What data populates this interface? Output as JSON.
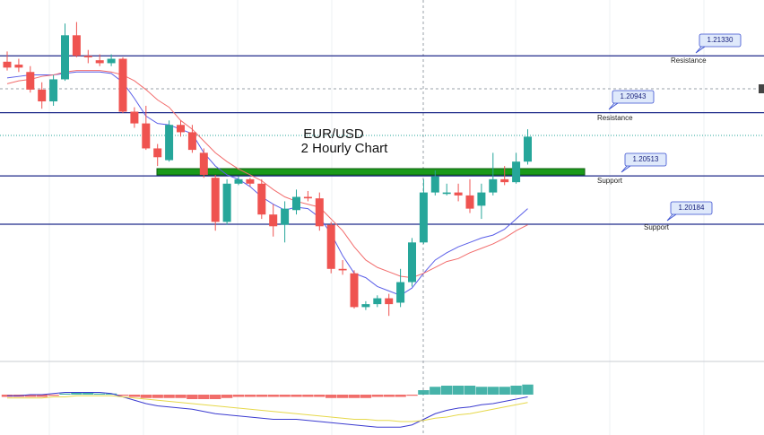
{
  "chart_data": {
    "type": "candlestick",
    "title": "EUR/USD",
    "subtitle": "2 Hourly Chart",
    "ylim": [
      1.1925,
      1.2171
    ],
    "open": [
      1.2129,
      1.2127,
      1.2122,
      1.211,
      1.2102,
      1.2117,
      1.2147,
      1.2133,
      1.213,
      1.2128,
      1.2131,
      1.2095,
      1.2087,
      1.207,
      1.2062,
      1.2086,
      1.2081,
      1.2067,
      1.205,
      1.202,
      1.2046,
      1.2049,
      1.2046,
      1.2025,
      1.2018,
      1.2028,
      1.2037,
      1.2036,
      1.2018,
      1.1988,
      1.1985,
      1.1962,
      1.1964,
      1.1968,
      1.1965,
      1.1979,
      1.2006,
      1.204,
      1.2039,
      1.204,
      1.2038,
      1.2031,
      1.204,
      1.2049,
      1.2047,
      1.2061
    ],
    "high": [
      1.2136,
      1.2131,
      1.2126,
      1.2115,
      1.212,
      1.2155,
      1.2156,
      1.2137,
      1.2134,
      1.2134,
      1.2132,
      1.2098,
      1.2099,
      1.2073,
      1.2089,
      1.2089,
      1.2086,
      1.207,
      1.2052,
      1.2049,
      1.2051,
      1.205,
      1.2049,
      1.2032,
      1.2034,
      1.2042,
      1.2041,
      1.204,
      1.202,
      1.1994,
      1.1987,
      1.1966,
      1.197,
      1.1971,
      1.1988,
      1.2009,
      1.2049,
      1.2055,
      1.2046,
      1.2046,
      1.2049,
      1.2046,
      1.2067,
      1.2058,
      1.2067,
      1.2083
    ],
    "low": [
      1.2123,
      1.2122,
      1.2108,
      1.2097,
      1.2099,
      1.2116,
      1.2132,
      1.2128,
      1.2126,
      1.2126,
      1.2094,
      1.2084,
      1.2069,
      1.2058,
      1.2061,
      1.2078,
      1.2067,
      1.205,
      1.2014,
      1.2018,
      1.2045,
      1.2044,
      1.2022,
      1.201,
      1.2006,
      1.2025,
      1.2034,
      1.2014,
      1.1985,
      1.1984,
      1.1961,
      1.196,
      1.1962,
      1.1956,
      1.1962,
      1.1976,
      1.2005,
      1.2038,
      1.2038,
      1.2034,
      1.2026,
      1.2022,
      1.2038,
      1.2045,
      1.2046,
      1.2059
    ],
    "close": [
      1.2125,
      1.2125,
      1.211,
      1.2102,
      1.2117,
      1.2147,
      1.2133,
      1.2132,
      1.2128,
      1.2131,
      1.2095,
      1.2087,
      1.207,
      1.2064,
      1.2086,
      1.2081,
      1.2069,
      1.2052,
      1.202,
      1.2046,
      1.2049,
      1.2046,
      1.2025,
      1.2017,
      1.2029,
      1.2037,
      1.2036,
      1.2017,
      1.1988,
      1.1987,
      1.1962,
      1.1964,
      1.1968,
      1.1964,
      1.1979,
      1.2006,
      1.204,
      1.2051,
      1.204,
      1.2038,
      1.2029,
      1.204,
      1.2049,
      1.2047,
      1.2061,
      1.2078
    ],
    "up_color": "#26a69a",
    "down_color": "#ef5350",
    "overlays": [
      {
        "color": "#5a5ee8",
        "values": [
          1.2118,
          1.2119,
          1.212,
          1.212,
          1.212,
          1.2121,
          1.2122,
          1.2122,
          1.2122,
          1.2121,
          1.2115,
          1.2104,
          1.2092,
          1.2087,
          1.2086,
          1.2083,
          1.208,
          1.2067,
          1.2058,
          1.2052,
          1.2049,
          1.2044,
          1.2037,
          1.2032,
          1.2028,
          1.203,
          1.2029,
          1.2023,
          1.2012,
          1.1997,
          1.1985,
          1.1982,
          1.1976,
          1.1973,
          1.197,
          1.1975,
          1.1985,
          1.1994,
          1.1999,
          1.2003,
          1.2006,
          1.2009,
          1.2011,
          1.2015,
          1.2022,
          1.2029
        ]
      },
      {
        "color": "#f26c6c",
        "values": [
          1.2114,
          1.2116,
          1.2117,
          1.2119,
          1.212,
          1.2122,
          1.2123,
          1.2123,
          1.2123,
          1.2122,
          1.212,
          1.2116,
          1.211,
          1.2103,
          1.2098,
          1.2089,
          1.2083,
          1.2075,
          1.2067,
          1.2061,
          1.2056,
          1.2052,
          1.2048,
          1.2042,
          1.2037,
          1.2034,
          1.2032,
          1.203,
          1.2022,
          1.2014,
          1.2003,
          1.1994,
          1.1989,
          1.1986,
          1.1983,
          1.1982,
          1.1985,
          1.1989,
          1.1993,
          1.1995,
          1.1999,
          1.2002,
          1.2005,
          1.2009,
          1.2014,
          1.2018
        ]
      }
    ],
    "levels": [
      {
        "value": 1.2133,
        "label": "1.21330",
        "note": "Resistance"
      },
      {
        "value": 1.20943,
        "label": "1.20943",
        "note": "Resistance"
      },
      {
        "value": 1.20513,
        "label": "1.20513",
        "note": "Support"
      },
      {
        "value": 1.20184,
        "label": "1.20184",
        "note": "Support"
      }
    ],
    "level_color": "#1f2a8a",
    "indicator": {
      "ylim": [
        -32,
        12
      ],
      "up_color": "#26a69a",
      "down_color": "#ef5350",
      "histogram": [
        -2,
        -2,
        -2,
        -2,
        -1,
        1,
        2,
        2,
        1,
        1,
        -1,
        -2,
        -3,
        -3,
        -3,
        -3,
        -4,
        -4,
        -4,
        -3,
        -2,
        -2,
        -2,
        -2,
        -2,
        -2,
        -2,
        -2,
        -3,
        -3,
        -3,
        -3,
        -2,
        -2,
        -2,
        -1,
        4,
        7,
        8,
        8,
        8,
        7,
        7,
        7,
        8,
        9
      ],
      "lines": [
        {
          "color": "#3b3bd0",
          "values": [
            -1,
            -1,
            0,
            0,
            1,
            2,
            2,
            2,
            2,
            1,
            -2,
            -5,
            -8,
            -10,
            -11,
            -12,
            -13,
            -15,
            -17,
            -18,
            -19,
            -20,
            -21,
            -22,
            -22,
            -22,
            -23,
            -24,
            -25,
            -26,
            -27,
            -28,
            -29,
            -29,
            -29,
            -27,
            -22,
            -17,
            -14,
            -12,
            -11,
            -9,
            -8,
            -6,
            -4,
            -2
          ]
        },
        {
          "color": "#e6d84a",
          "values": [
            -3,
            -3,
            -3,
            -3,
            -2,
            -2,
            -1,
            -1,
            -1,
            -1,
            -2,
            -3,
            -4,
            -5,
            -6,
            -7,
            -8,
            -9,
            -10,
            -11,
            -12,
            -13,
            -14,
            -15,
            -16,
            -17,
            -18,
            -19,
            -20,
            -21,
            -22,
            -22,
            -23,
            -23,
            -24,
            -24,
            -23,
            -21,
            -20,
            -18,
            -17,
            -15,
            -13,
            -11,
            -9,
            -7
          ]
        }
      ]
    }
  }
}
